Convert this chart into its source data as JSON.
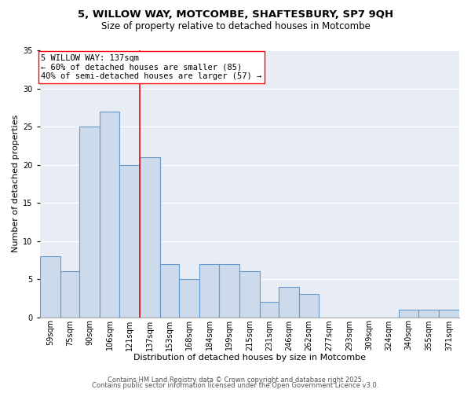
{
  "title": "5, WILLOW WAY, MOTCOMBE, SHAFTESBURY, SP7 9QH",
  "subtitle": "Size of property relative to detached houses in Motcombe",
  "xlabel": "Distribution of detached houses by size in Motcombe",
  "ylabel": "Number of detached properties",
  "bar_color": "#ccdaeb",
  "bar_edge_color": "#6699cc",
  "background_color": "#e8edf5",
  "grid_color": "white",
  "categories": [
    "59sqm",
    "75sqm",
    "90sqm",
    "106sqm",
    "121sqm",
    "137sqm",
    "153sqm",
    "168sqm",
    "184sqm",
    "199sqm",
    "215sqm",
    "231sqm",
    "246sqm",
    "262sqm",
    "277sqm",
    "293sqm",
    "309sqm",
    "324sqm",
    "340sqm",
    "355sqm",
    "371sqm"
  ],
  "values": [
    8,
    6,
    25,
    27,
    20,
    21,
    7,
    5,
    7,
    7,
    6,
    2,
    4,
    3,
    0,
    0,
    0,
    0,
    1,
    1,
    1
  ],
  "bin_edges": [
    59,
    75,
    90,
    106,
    121,
    137,
    153,
    168,
    184,
    199,
    215,
    231,
    246,
    262,
    277,
    293,
    309,
    324,
    340,
    355,
    371,
    387
  ],
  "vline_x": 137,
  "vline_color": "red",
  "annotation_text": "5 WILLOW WAY: 137sqm\n← 60% of detached houses are smaller (85)\n40% of semi-detached houses are larger (57) →",
  "annotation_box_color": "white",
  "annotation_box_edge_color": "red",
  "ylim": [
    0,
    35
  ],
  "yticks": [
    0,
    5,
    10,
    15,
    20,
    25,
    30,
    35
  ],
  "footer1": "Contains HM Land Registry data © Crown copyright and database right 2025.",
  "footer2": "Contains public sector information licensed under the Open Government Licence v3.0.",
  "title_fontsize": 9.5,
  "subtitle_fontsize": 8.5,
  "xlabel_fontsize": 8,
  "ylabel_fontsize": 8,
  "tick_fontsize": 7,
  "annotation_fontsize": 7.5,
  "footer_fontsize": 6
}
